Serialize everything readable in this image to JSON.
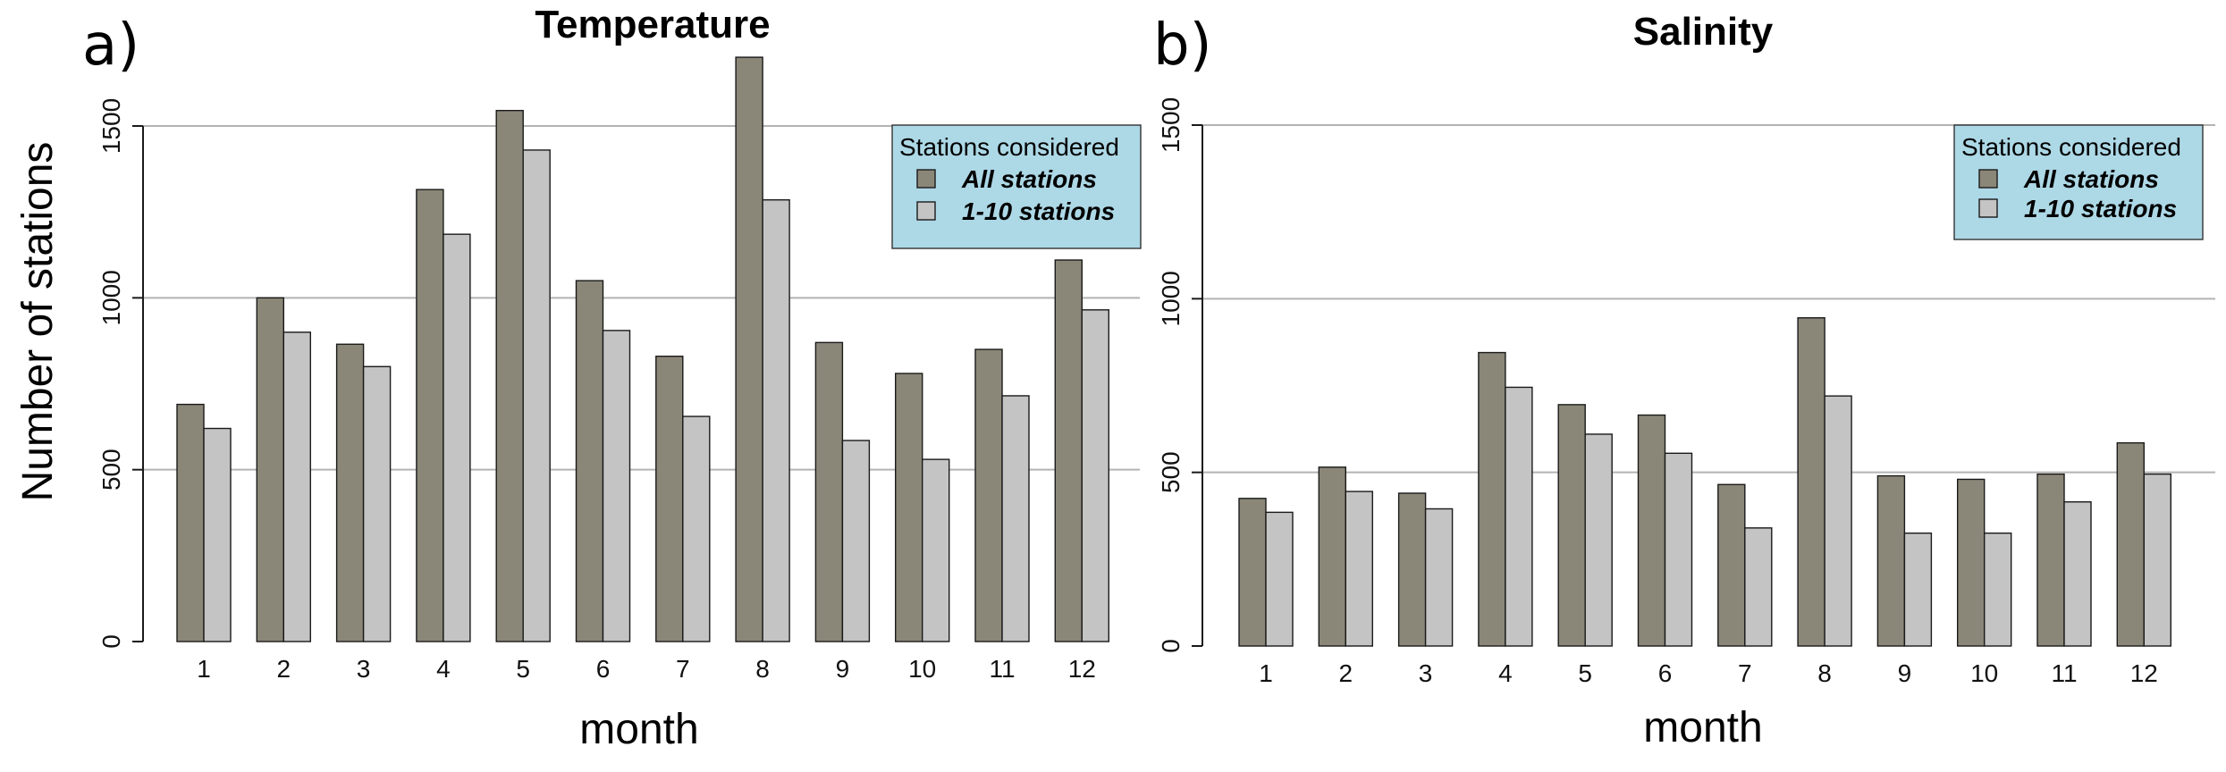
{
  "ylabel": "Number of stations",
  "chart_data": [
    {
      "type": "bar",
      "panel_label": "a)",
      "title": "Temperature",
      "xlabel": "month",
      "ylabel": "Number of stations",
      "ylim": [
        0,
        1700
      ],
      "yticks": [
        "0",
        "500",
        "1000",
        "1500"
      ],
      "grid": "horizontal",
      "legend": {
        "title": "Stations considered",
        "position": "top-right"
      },
      "categories": [
        "1",
        "2",
        "3",
        "4",
        "5",
        "6",
        "7",
        "8",
        "9",
        "10",
        "11",
        "12"
      ],
      "series": [
        {
          "name": "All stations",
          "color": "#8b8778",
          "values": [
            690,
            1000,
            865,
            1315,
            1545,
            1050,
            830,
            1700,
            870,
            780,
            850,
            1110
          ]
        },
        {
          "name": "1-10 stations",
          "color": "#c4c4c4",
          "values": [
            620,
            900,
            800,
            1185,
            1430,
            905,
            655,
            1285,
            585,
            530,
            715,
            965
          ]
        }
      ]
    },
    {
      "type": "bar",
      "panel_label": "b)",
      "title": "Salinity",
      "xlabel": "month",
      "ylabel": "",
      "ylim": [
        0,
        1500
      ],
      "yticks": [
        "0",
        "500",
        "1000",
        "1500"
      ],
      "grid": "horizontal",
      "legend": {
        "title": "Stations considered",
        "position": "top-right"
      },
      "categories": [
        "1",
        "2",
        "3",
        "4",
        "5",
        "6",
        "7",
        "8",
        "9",
        "10",
        "11",
        "12"
      ],
      "series": [
        {
          "name": "All stations",
          "color": "#8b8778",
          "values": [
            425,
            515,
            440,
            845,
            695,
            665,
            465,
            945,
            490,
            480,
            495,
            585
          ]
        },
        {
          "name": "1-10 stations",
          "color": "#c4c4c4",
          "values": [
            385,
            445,
            395,
            745,
            610,
            555,
            340,
            720,
            325,
            325,
            415,
            495
          ]
        }
      ]
    }
  ]
}
